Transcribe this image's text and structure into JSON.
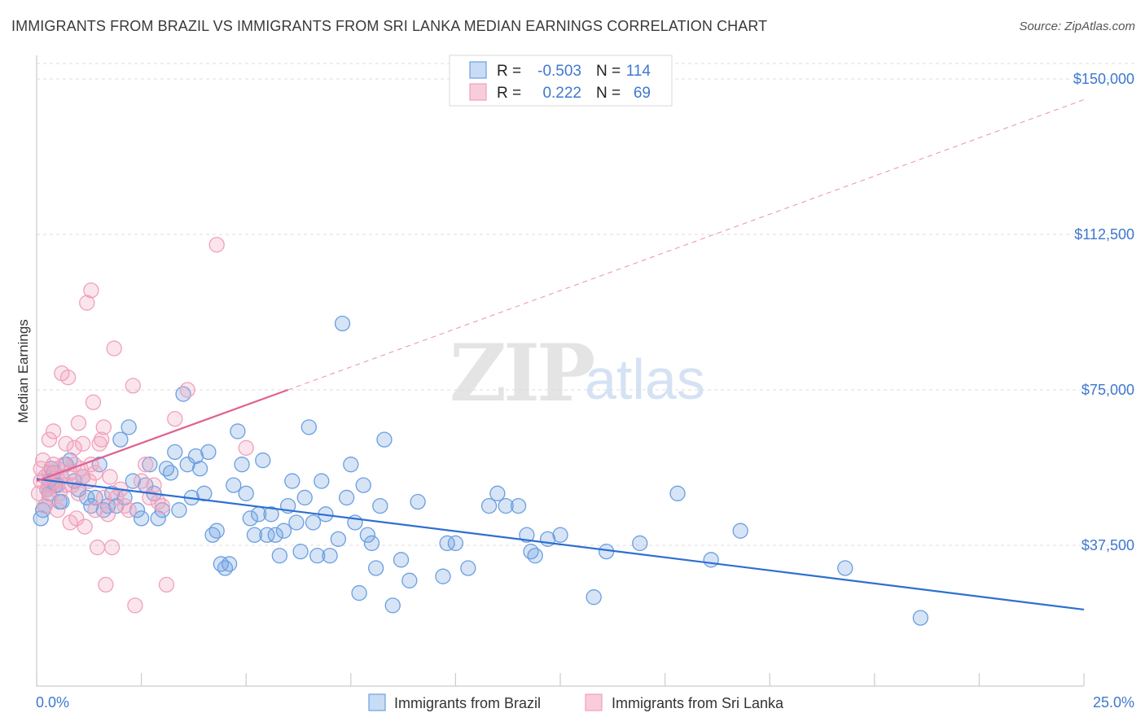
{
  "title": "IMMIGRANTS FROM BRAZIL VS IMMIGRANTS FROM SRI LANKA MEDIAN EARNINGS CORRELATION CHART",
  "source": "Source: ZipAtlas.com",
  "watermark": {
    "zip": "ZIP",
    "atlas": "atlas"
  },
  "chart_data": {
    "type": "scatter",
    "xlabel": "",
    "ylabel": "Median Earnings",
    "xlim": [
      0,
      25
    ],
    "ylim": [
      0,
      160000
    ],
    "x_tick_labels": [
      "0.0%",
      "25.0%"
    ],
    "y_ticks": [
      37500,
      75000,
      112500,
      150000
    ],
    "y_tick_labels": [
      "$37,500",
      "$75,000",
      "$112,500",
      "$150,000"
    ],
    "grid": "horizontal dashed",
    "legend_position": "top-center",
    "series": [
      {
        "name": "Immigrants from Brazil",
        "color": "#6a9fe0",
        "line_color": "#2e6fd1",
        "R": "-0.503",
        "N": "114",
        "trend": {
          "x": [
            0,
            25
          ],
          "y": [
            53500,
            22000
          ]
        },
        "points": [
          [
            0.1,
            44000
          ],
          [
            0.2,
            47000
          ],
          [
            0.3,
            50000
          ],
          [
            0.3,
            53000
          ],
          [
            0.4,
            55000
          ],
          [
            0.5,
            52000
          ],
          [
            0.6,
            48000
          ],
          [
            0.6,
            54000
          ],
          [
            0.7,
            57000
          ],
          [
            0.8,
            58000
          ],
          [
            0.9,
            53000
          ],
          [
            1.0,
            51000
          ],
          [
            1.1,
            54000
          ],
          [
            1.2,
            49000
          ],
          [
            1.3,
            47000
          ],
          [
            1.4,
            49000
          ],
          [
            1.5,
            57000
          ],
          [
            1.6,
            46000
          ],
          [
            1.7,
            47000
          ],
          [
            1.8,
            50000
          ],
          [
            1.9,
            47000
          ],
          [
            2.0,
            63000
          ],
          [
            2.1,
            49000
          ],
          [
            2.2,
            66000
          ],
          [
            2.3,
            53000
          ],
          [
            2.4,
            46000
          ],
          [
            2.5,
            44000
          ],
          [
            2.6,
            52000
          ],
          [
            2.7,
            57000
          ],
          [
            2.8,
            50000
          ],
          [
            2.9,
            44000
          ],
          [
            3.0,
            46000
          ],
          [
            3.1,
            56000
          ],
          [
            3.2,
            55000
          ],
          [
            3.3,
            60000
          ],
          [
            3.4,
            46000
          ],
          [
            3.5,
            74000
          ],
          [
            3.6,
            57000
          ],
          [
            3.7,
            49000
          ],
          [
            3.8,
            59000
          ],
          [
            3.9,
            56000
          ],
          [
            4.0,
            50000
          ],
          [
            4.1,
            60000
          ],
          [
            4.2,
            40000
          ],
          [
            4.3,
            41000
          ],
          [
            4.4,
            33000
          ],
          [
            4.5,
            32000
          ],
          [
            4.6,
            33000
          ],
          [
            4.7,
            52000
          ],
          [
            4.8,
            65000
          ],
          [
            4.9,
            57000
          ],
          [
            5.0,
            50000
          ],
          [
            5.1,
            44000
          ],
          [
            5.2,
            40000
          ],
          [
            5.3,
            45000
          ],
          [
            5.4,
            58000
          ],
          [
            5.5,
            40000
          ],
          [
            5.6,
            45000
          ],
          [
            5.7,
            40000
          ],
          [
            5.8,
            35000
          ],
          [
            5.9,
            41000
          ],
          [
            6.0,
            47000
          ],
          [
            6.1,
            53000
          ],
          [
            6.2,
            43000
          ],
          [
            6.3,
            36000
          ],
          [
            6.4,
            49000
          ],
          [
            6.5,
            66000
          ],
          [
            6.6,
            43000
          ],
          [
            6.7,
            35000
          ],
          [
            6.8,
            53000
          ],
          [
            6.9,
            45000
          ],
          [
            7.0,
            35000
          ],
          [
            7.2,
            39000
          ],
          [
            7.3,
            91000
          ],
          [
            7.4,
            49000
          ],
          [
            7.5,
            57000
          ],
          [
            7.6,
            43000
          ],
          [
            7.7,
            26000
          ],
          [
            7.8,
            52000
          ],
          [
            7.9,
            40000
          ],
          [
            8.0,
            38000
          ],
          [
            8.1,
            32000
          ],
          [
            8.2,
            47000
          ],
          [
            8.3,
            63000
          ],
          [
            8.5,
            23000
          ],
          [
            8.7,
            34000
          ],
          [
            8.9,
            29000
          ],
          [
            9.1,
            48000
          ],
          [
            9.7,
            30000
          ],
          [
            9.8,
            38000
          ],
          [
            10.0,
            38000
          ],
          [
            10.3,
            32000
          ],
          [
            10.8,
            47000
          ],
          [
            11.0,
            50000
          ],
          [
            11.2,
            47000
          ],
          [
            11.5,
            47000
          ],
          [
            11.7,
            40000
          ],
          [
            11.8,
            36000
          ],
          [
            11.9,
            35000
          ],
          [
            12.2,
            39000
          ],
          [
            12.5,
            40000
          ],
          [
            13.3,
            25000
          ],
          [
            13.6,
            36000
          ],
          [
            14.4,
            38000
          ],
          [
            15.3,
            50000
          ],
          [
            16.1,
            34000
          ],
          [
            16.8,
            41000
          ],
          [
            19.3,
            32000
          ],
          [
            21.1,
            20000
          ],
          [
            0.15,
            46000
          ],
          [
            0.25,
            51000
          ],
          [
            0.35,
            56000
          ],
          [
            0.45,
            52000
          ],
          [
            0.55,
            48000
          ]
        ]
      },
      {
        "name": "Immigrants from Sri Lanka",
        "color": "#f0a0bc",
        "line_color": "#e06090",
        "R": "0.222",
        "N": "69",
        "trend": {
          "x": [
            0,
            6
          ],
          "y": [
            53000,
            75000
          ]
        },
        "trend_extended": {
          "x": [
            6,
            25
          ],
          "y": [
            75000,
            145000
          ]
        },
        "points": [
          [
            0.05,
            50000
          ],
          [
            0.1,
            53000
          ],
          [
            0.1,
            56000
          ],
          [
            0.15,
            58000
          ],
          [
            0.2,
            54000
          ],
          [
            0.25,
            51000
          ],
          [
            0.3,
            55000
          ],
          [
            0.3,
            63000
          ],
          [
            0.35,
            52000
          ],
          [
            0.4,
            57000
          ],
          [
            0.4,
            65000
          ],
          [
            0.45,
            53000
          ],
          [
            0.5,
            46000
          ],
          [
            0.5,
            56000
          ],
          [
            0.55,
            50000
          ],
          [
            0.6,
            54000
          ],
          [
            0.6,
            79000
          ],
          [
            0.65,
            57000
          ],
          [
            0.7,
            52000
          ],
          [
            0.7,
            62000
          ],
          [
            0.75,
            78000
          ],
          [
            0.8,
            55000
          ],
          [
            0.8,
            43000
          ],
          [
            0.85,
            52000
          ],
          [
            0.9,
            57000
          ],
          [
            0.9,
            61000
          ],
          [
            0.95,
            44000
          ],
          [
            1.0,
            50000
          ],
          [
            1.0,
            67000
          ],
          [
            1.05,
            56000
          ],
          [
            1.1,
            62000
          ],
          [
            1.1,
            54000
          ],
          [
            1.15,
            42000
          ],
          [
            1.2,
            96000
          ],
          [
            1.25,
            53000
          ],
          [
            1.3,
            57000
          ],
          [
            1.3,
            99000
          ],
          [
            1.35,
            72000
          ],
          [
            1.4,
            55000
          ],
          [
            1.4,
            46000
          ],
          [
            1.45,
            37000
          ],
          [
            1.5,
            62000
          ],
          [
            1.55,
            63000
          ],
          [
            1.6,
            49000
          ],
          [
            1.6,
            66000
          ],
          [
            1.65,
            28000
          ],
          [
            1.7,
            45000
          ],
          [
            1.75,
            54000
          ],
          [
            1.8,
            37000
          ],
          [
            1.85,
            85000
          ],
          [
            1.9,
            49000
          ],
          [
            2.0,
            51000
          ],
          [
            2.1,
            47000
          ],
          [
            2.2,
            46000
          ],
          [
            2.3,
            76000
          ],
          [
            2.35,
            23000
          ],
          [
            2.5,
            53000
          ],
          [
            2.6,
            57000
          ],
          [
            2.7,
            49000
          ],
          [
            2.8,
            52000
          ],
          [
            2.9,
            48000
          ],
          [
            3.0,
            47000
          ],
          [
            3.1,
            28000
          ],
          [
            3.3,
            68000
          ],
          [
            3.6,
            75000
          ],
          [
            4.3,
            110000
          ],
          [
            5.0,
            61000
          ],
          [
            0.2,
            47000
          ],
          [
            0.3,
            49000
          ]
        ]
      }
    ]
  }
}
